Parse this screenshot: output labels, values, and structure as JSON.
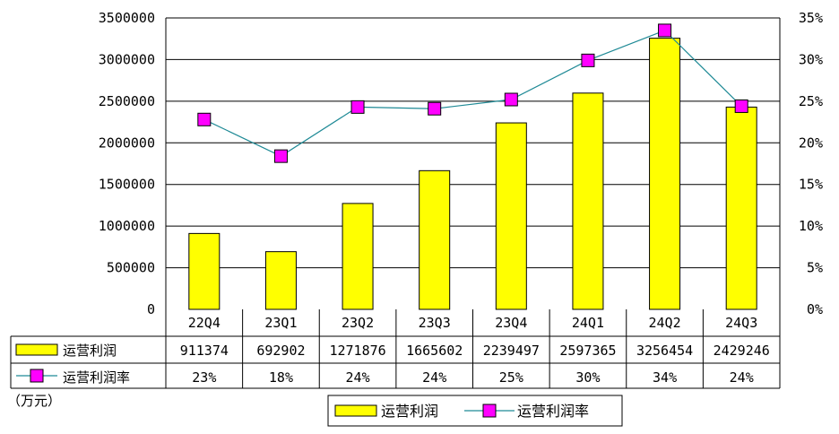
{
  "chart_data": {
    "type": "bar",
    "categories": [
      "22Q4",
      "23Q1",
      "23Q2",
      "23Q3",
      "23Q4",
      "24Q1",
      "24Q2",
      "24Q3"
    ],
    "series": [
      {
        "name": "运营利润",
        "kind": "bar",
        "axis": "left",
        "color": "#ffff00",
        "values": [
          911374,
          692902,
          1271876,
          1665602,
          2239497,
          2597365,
          3256454,
          2429246
        ],
        "labels": [
          "911374",
          "692902",
          "1271876",
          "1665602",
          "2239497",
          "2597365",
          "3256454",
          "2429246"
        ]
      },
      {
        "name": "运营利润率",
        "kind": "line",
        "axis": "right",
        "line_color": "#1f8a96",
        "marker_color": "#ff00ff",
        "values": [
          22.8,
          18.4,
          24.3,
          24.1,
          25.2,
          29.9,
          33.5,
          24.4
        ],
        "labels": [
          "23%",
          "18%",
          "24%",
          "24%",
          "25%",
          "30%",
          "34%",
          "24%"
        ]
      }
    ],
    "left_axis": {
      "ylim": [
        0,
        3500000
      ],
      "ticks": [
        "0",
        "500000",
        "1000000",
        "1500000",
        "2000000",
        "2500000",
        "3000000",
        "3500000"
      ]
    },
    "right_axis": {
      "ylim": [
        0,
        35
      ],
      "ticks": [
        "0%",
        "5%",
        "10%",
        "15%",
        "20%",
        "25%",
        "30%",
        "35%"
      ]
    },
    "unit_label": "（万元）",
    "grid": true,
    "legend_position": "bottom"
  }
}
